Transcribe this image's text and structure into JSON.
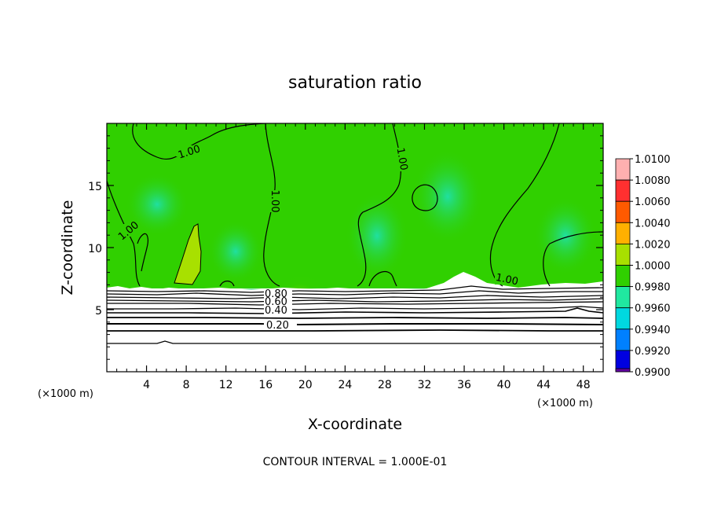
{
  "chart_data": {
    "type": "heatmap",
    "title": "saturation ratio",
    "xlabel": "X-coordinate",
    "ylabel": "Z-coordinate",
    "x_unit": "(×1000 m)",
    "y_unit": "(×1000 m)",
    "xlim": [
      0,
      50
    ],
    "ylim": [
      0,
      20
    ],
    "x_ticks": [
      4,
      8,
      12,
      16,
      20,
      24,
      28,
      32,
      36,
      40,
      44,
      48
    ],
    "y_ticks": [
      5,
      10,
      15
    ],
    "colorbar": {
      "levels": [
        "1.0100",
        "1.0080",
        "1.0060",
        "1.0040",
        "1.0020",
        "1.0000",
        "0.9980",
        "0.9960",
        "0.9940",
        "0.9920",
        "0.9900"
      ],
      "colors": [
        "#ffb0b0",
        "#ff3030",
        "#ff5a00",
        "#ffb000",
        "#a8e000",
        "#30d000",
        "#20e8a0",
        "#00d8e0",
        "#0080ff",
        "#0000e0",
        "#6000a0"
      ]
    },
    "contour_labels": [
      "1.00",
      "1.00",
      "1.00",
      "1.00",
      "1.00",
      "0.80",
      "0.60",
      "0.40",
      "0.20"
    ],
    "contour_interval_text": "CONTOUR INTERVAL = 1.000E-01"
  }
}
